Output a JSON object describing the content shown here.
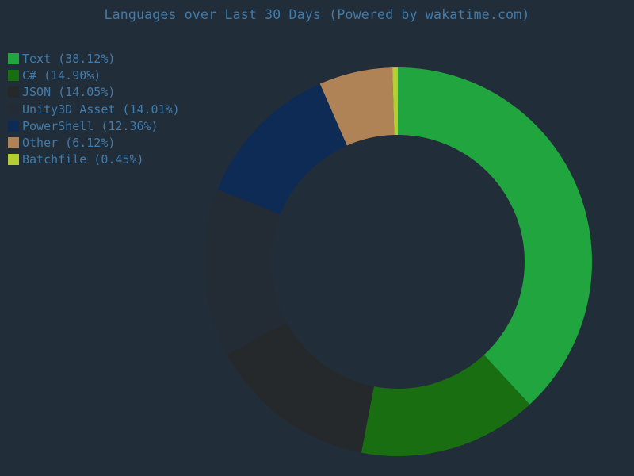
{
  "title": "Languages over Last 30 Days (Powered by wakatime.com)",
  "colors": {
    "background": "#222d3a",
    "text": "#3f7cac"
  },
  "legend": {
    "position": "top-left",
    "items": [
      {
        "label": "Text (38.12%)"
      },
      {
        "label": "C# (14.90%)"
      },
      {
        "label": "JSON (14.05%)"
      },
      {
        "label": "Unity3D Asset (14.01%)"
      },
      {
        "label": "PowerShell (12.36%)"
      },
      {
        "label": "Other (6.12%)"
      },
      {
        "label": "Batchfile (0.45%)"
      }
    ]
  },
  "chart_data": {
    "type": "pie",
    "subtype": "donut",
    "title": "Languages over Last 30 Days (Powered by wakatime.com)",
    "start_angle_deg": 0,
    "direction": "clockwise",
    "legend_position": "top-left",
    "series": [
      {
        "name": "Text",
        "value": 38.12,
        "color": "#21a53e"
      },
      {
        "name": "C#",
        "value": 14.9,
        "color": "#1a6e12"
      },
      {
        "name": "JSON",
        "value": 14.05,
        "color": "#26292c"
      },
      {
        "name": "Unity3D Asset",
        "value": 14.01,
        "color": "#232c35"
      },
      {
        "name": "PowerShell",
        "value": 12.36,
        "color": "#0e2b55"
      },
      {
        "name": "Other",
        "value": 6.12,
        "color": "#b08356"
      },
      {
        "name": "Batchfile",
        "value": 0.45,
        "color": "#b4cd30"
      }
    ]
  }
}
